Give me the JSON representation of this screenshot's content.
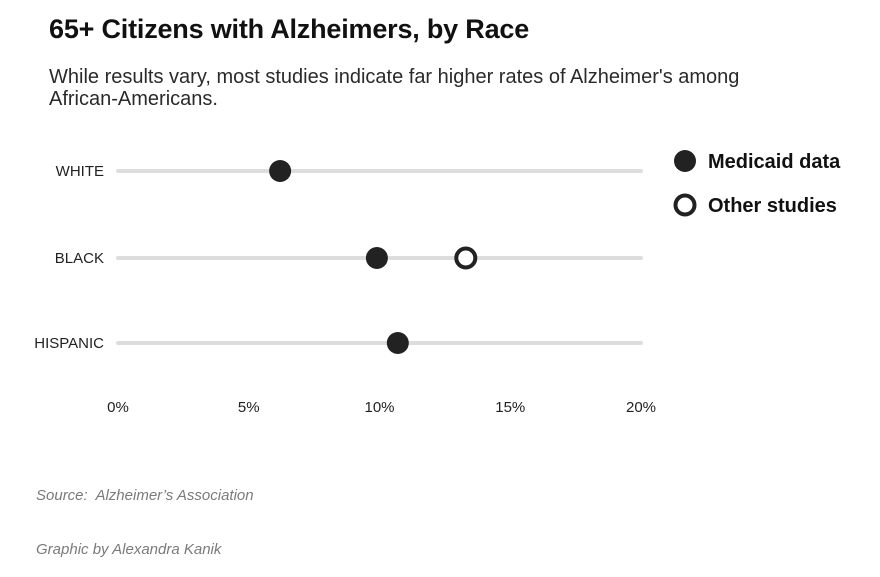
{
  "title": "65+ Citizens with Alzheimers, by Race",
  "subtitle": "While results vary, most studies indicate far higher rates of Alzheimer's among African-Americans.",
  "source": {
    "line1": "Source:  Alzheimer’s Association",
    "line2": "Graphic by Alexandra Kanik"
  },
  "colors": {
    "dot": "#222222",
    "track": "#dddddd",
    "ring_fill": "#ffffff"
  },
  "chart_data": {
    "type": "dot-plot",
    "title": "65+ Citizens with Alzheimers, by Race",
    "categories": [
      "WHITE",
      "BLACK",
      "HISPANIC"
    ],
    "xlim": [
      0,
      20
    ],
    "x_ticks": [
      0,
      5,
      10,
      15,
      20
    ],
    "x_tick_labels": [
      "0%",
      "5%",
      "10%",
      "15%",
      "20%"
    ],
    "legend_position": "top-right",
    "series": [
      {
        "name": "Medicaid data",
        "marker": "filled",
        "values": [
          6.2,
          9.9,
          10.7
        ]
      },
      {
        "name": "Other studies",
        "marker": "ring",
        "values": [
          null,
          13.3,
          null
        ]
      }
    ]
  }
}
